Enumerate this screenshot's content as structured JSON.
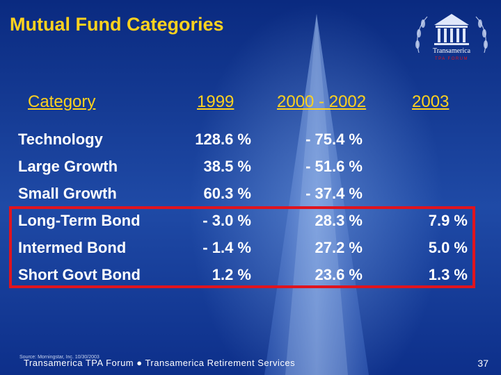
{
  "slide": {
    "title": "Mutual Fund Categories",
    "logo_text": "Transamerica",
    "logo_subtext": "TPA FORUM",
    "colors": {
      "title": "#ffd21e",
      "text": "#ffffff",
      "highlight": "#e0141e",
      "background": "#0b2d88"
    }
  },
  "table": {
    "headers": [
      "Category",
      "1999",
      "2000 - 2002",
      "2003"
    ],
    "rows": [
      [
        "Technology",
        "128.6 %",
        "- 75.4 %",
        ""
      ],
      [
        "Large Growth",
        "38.5 %",
        "- 51.6 %",
        ""
      ],
      [
        "Small Growth",
        "60.3 %",
        "- 37.4 %",
        ""
      ],
      [
        "Long-Term Bond",
        "- 3.0 %",
        "28.3 %",
        "7.9 %"
      ],
      [
        "Intermed Bond",
        "- 1.4 %",
        "27.2 %",
        "5.0 %"
      ],
      [
        "Short Govt Bond",
        "1.2 %",
        "23.6 %",
        "1.3 %"
      ]
    ]
  },
  "footer": {
    "source": "Source: Morningstar, Inc. 10/30/2003",
    "text": "Transamerica TPA Forum  ●  Transamerica Retirement Services",
    "page_number": "37"
  }
}
